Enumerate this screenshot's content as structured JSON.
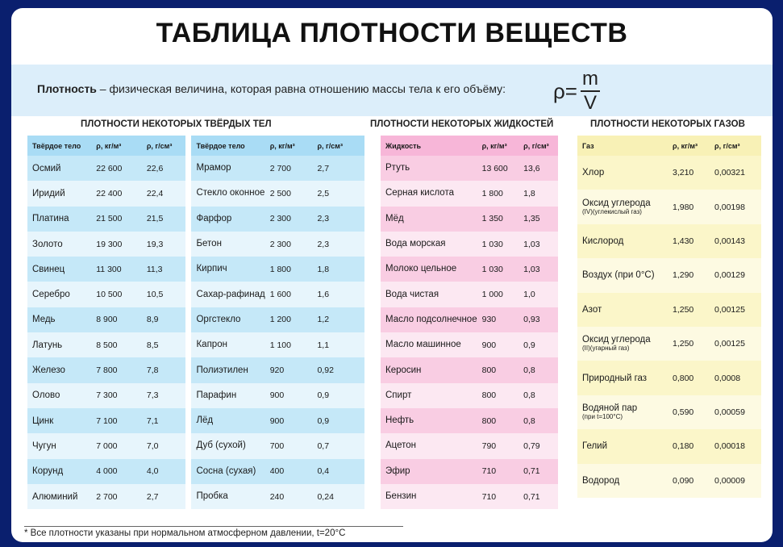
{
  "title": "ТАБЛИЦА ПЛОТНОСТИ ВЕЩЕСТВ",
  "definition": {
    "term": "Плотность",
    "text": " – физическая величина, которая равна отношению массы тела к его объёму:",
    "formula_lhs": "ρ=",
    "formula_num": "m",
    "formula_den": "V"
  },
  "solids": {
    "heading": "ПЛОТНОСТИ НЕКОТОРЫХ ТВЁРДЫХ ТЕЛ",
    "headers": [
      "Твёрдое тело",
      "ρ, кг/м³",
      "ρ, г/см³"
    ],
    "left": [
      [
        "Осмий",
        "22 600",
        "22,6"
      ],
      [
        "Иридий",
        "22 400",
        "22,4"
      ],
      [
        "Платина",
        "21 500",
        "21,5"
      ],
      [
        "Золото",
        "19 300",
        "19,3"
      ],
      [
        "Свинец",
        "11 300",
        "11,3"
      ],
      [
        "Серебро",
        "10 500",
        "10,5"
      ],
      [
        "Медь",
        "8 900",
        "8,9"
      ],
      [
        "Латунь",
        "8 500",
        "8,5"
      ],
      [
        "Железо",
        "7 800",
        "7,8"
      ],
      [
        "Олово",
        "7 300",
        "7,3"
      ],
      [
        "Цинк",
        "7 100",
        "7,1"
      ],
      [
        "Чугун",
        "7 000",
        "7,0"
      ],
      [
        "Корунд",
        "4 000",
        "4,0"
      ],
      [
        "Алюминий",
        "2 700",
        "2,7"
      ]
    ],
    "right": [
      [
        "Мрамор",
        "2 700",
        "2,7"
      ],
      [
        "Стекло оконное",
        "2 500",
        "2,5"
      ],
      [
        "Фарфор",
        "2 300",
        "2,3"
      ],
      [
        "Бетон",
        "2 300",
        "2,3"
      ],
      [
        "Кирпич",
        "1 800",
        "1,8"
      ],
      [
        "Сахар-рафинад",
        "1 600",
        "1,6"
      ],
      [
        "Оргстекло",
        "1 200",
        "1,2"
      ],
      [
        "Капрон",
        "1 100",
        "1,1"
      ],
      [
        "Полиэтилен",
        "920",
        "0,92"
      ],
      [
        "Парафин",
        "900",
        "0,9"
      ],
      [
        "Лёд",
        "900",
        "0,9"
      ],
      [
        "Дуб (сухой)",
        "700",
        "0,7"
      ],
      [
        "Сосна (сухая)",
        "400",
        "0,4"
      ],
      [
        "Пробка",
        "240",
        "0,24"
      ]
    ]
  },
  "liquids": {
    "heading": "ПЛОТНОСТИ НЕКОТОРЫХ ЖИДКОСТЕЙ",
    "headers": [
      "Жидкость",
      "ρ, кг/м³",
      "ρ, г/см³"
    ],
    "rows": [
      [
        "Ртуть",
        "13 600",
        "13,6"
      ],
      [
        "Серная кислота",
        "1 800",
        "1,8"
      ],
      [
        "Мёд",
        "1 350",
        "1,35"
      ],
      [
        "Вода морская",
        "1 030",
        "1,03"
      ],
      [
        "Молоко цельное",
        "1 030",
        "1,03"
      ],
      [
        "Вода чистая",
        "1 000",
        "1,0"
      ],
      [
        "Масло подсолнечное",
        "930",
        "0,93"
      ],
      [
        "Масло машинное",
        "900",
        "0,9"
      ],
      [
        "Керосин",
        "800",
        "0,8"
      ],
      [
        "Спирт",
        "800",
        "0,8"
      ],
      [
        "Нефть",
        "800",
        "0,8"
      ],
      [
        "Ацетон",
        "790",
        "0,79"
      ],
      [
        "Эфир",
        "710",
        "0,71"
      ],
      [
        "Бензин",
        "710",
        "0,71"
      ]
    ]
  },
  "gases": {
    "heading": "ПЛОТНОСТИ НЕКОТОРЫХ ГАЗОВ",
    "headers": [
      "Газ",
      "ρ, кг/м³",
      "ρ, г/см³"
    ],
    "rows": [
      [
        "Хлор",
        "",
        "3,210",
        "0,00321"
      ],
      [
        "Оксид углерода",
        "(IV)(углекислый газ)",
        "1,980",
        "0,00198"
      ],
      [
        "Кислород",
        "",
        "1,430",
        "0,00143"
      ],
      [
        "Воздух (при 0°С)",
        "",
        "1,290",
        "0,00129"
      ],
      [
        "Азот",
        "",
        "1,250",
        "0,00125"
      ],
      [
        "Оксид углерода",
        "(II)(угарный газ)",
        "1,250",
        "0,00125"
      ],
      [
        "Природный газ",
        "",
        "0,800",
        "0,0008"
      ],
      [
        "Водяной пар",
        "(при t=100°С)",
        "0,590",
        "0,00059"
      ],
      [
        "Гелий",
        "",
        "0,180",
        "0,00018"
      ],
      [
        "Водород",
        "",
        "0,090",
        "0,00009"
      ]
    ]
  },
  "footnote": "* Все плотности указаны при нормальном атмосферном давлении, t=20°С"
}
